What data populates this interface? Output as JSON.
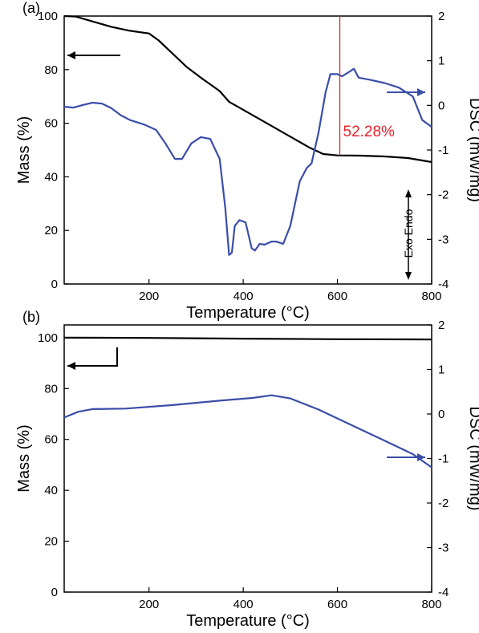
{
  "colors": {
    "mass": "#000000",
    "dsc": "#3a4ea8",
    "annotation": "#e8202a"
  },
  "chart_data": [
    {
      "panel_label": "(a)",
      "type": "line",
      "xlabel": "Temperature (°C)",
      "xlim": [
        20,
        800
      ],
      "xticks": [
        200,
        400,
        600,
        800
      ],
      "ylabel_left": "Mass (%)",
      "ylim_left": [
        0,
        100
      ],
      "yticks_left": [
        0,
        20,
        40,
        60,
        80,
        100
      ],
      "ylabel_right": "DSC (mW/mg)",
      "ylim_right": [
        -4,
        2
      ],
      "yticks_right": [
        -4,
        -3,
        -2,
        -1,
        0,
        1,
        2
      ],
      "reference_line_mass": 100,
      "vertical_marker_x": 605,
      "annotation": "52.28%",
      "exo_endo_label": "Exo  Endo",
      "series": [
        {
          "axis": "left",
          "points": [
            [
              20,
              100
            ],
            [
              45,
              99.8
            ],
            [
              80,
              98
            ],
            [
              120,
              96
            ],
            [
              160,
              94.5
            ],
            [
              200,
              93.5
            ],
            [
              220,
              91
            ],
            [
              250,
              86
            ],
            [
              280,
              81
            ],
            [
              310,
              77
            ],
            [
              350,
              72
            ],
            [
              370,
              68
            ],
            [
              390,
              66
            ],
            [
              420,
              63
            ],
            [
              460,
              59
            ],
            [
              500,
              55
            ],
            [
              540,
              51
            ],
            [
              570,
              48.5
            ],
            [
              600,
              48
            ],
            [
              650,
              47.9
            ],
            [
              700,
              47.6
            ],
            [
              750,
              47
            ],
            [
              800,
              45.5
            ]
          ]
        },
        {
          "axis": "right",
          "points": [
            [
              20,
              -0.03
            ],
            [
              40,
              -0.05
            ],
            [
              60,
              0.01
            ],
            [
              80,
              0.06
            ],
            [
              100,
              0.04
            ],
            [
              120,
              -0.06
            ],
            [
              140,
              -0.22
            ],
            [
              160,
              -0.33
            ],
            [
              190,
              -0.43
            ],
            [
              215,
              -0.55
            ],
            [
              235,
              -0.85
            ],
            [
              255,
              -1.2
            ],
            [
              270,
              -1.2
            ],
            [
              290,
              -0.85
            ],
            [
              310,
              -0.71
            ],
            [
              330,
              -0.75
            ],
            [
              350,
              -1.2
            ],
            [
              362,
              -2.3
            ],
            [
              370,
              -3.35
            ],
            [
              376,
              -3.3
            ],
            [
              382,
              -2.7
            ],
            [
              392,
              -2.57
            ],
            [
              405,
              -2.62
            ],
            [
              418,
              -3.2
            ],
            [
              425,
              -3.25
            ],
            [
              435,
              -3.1
            ],
            [
              445,
              -3.12
            ],
            [
              460,
              -3.05
            ],
            [
              470,
              -3.05
            ],
            [
              485,
              -3.1
            ],
            [
              500,
              -2.7
            ],
            [
              520,
              -1.7
            ],
            [
              535,
              -1.4
            ],
            [
              545,
              -1.3
            ],
            [
              560,
              -0.6
            ],
            [
              575,
              0.3
            ],
            [
              585,
              0.7
            ],
            [
              600,
              0.7
            ],
            [
              610,
              0.65
            ],
            [
              625,
              0.75
            ],
            [
              635,
              0.82
            ],
            [
              645,
              0.62
            ],
            [
              670,
              0.57
            ],
            [
              700,
              0.5
            ],
            [
              730,
              0.4
            ],
            [
              760,
              0.2
            ],
            [
              780,
              -0.33
            ],
            [
              800,
              -0.48
            ]
          ]
        }
      ]
    },
    {
      "panel_label": "(b)",
      "type": "line",
      "xlabel": "Temperature (°C)",
      "xlim": [
        20,
        800
      ],
      "xticks": [
        200,
        400,
        600,
        800
      ],
      "ylabel_left": "Mass (%)",
      "ylim_left": [
        0,
        105
      ],
      "yticks_left": [
        0,
        20,
        40,
        60,
        80,
        100
      ],
      "ylabel_right": "DSC (mW/mg)",
      "ylim_right": [
        -4,
        2
      ],
      "yticks_right": [
        -4,
        -3,
        -2,
        -1,
        0,
        1,
        2
      ],
      "series": [
        {
          "axis": "left",
          "points": [
            [
              20,
              100
            ],
            [
              200,
              99.9
            ],
            [
              400,
              99.6
            ],
            [
              600,
              99.4
            ],
            [
              800,
              99.3
            ]
          ]
        },
        {
          "axis": "right",
          "points": [
            [
              20,
              -0.08
            ],
            [
              50,
              0.05
            ],
            [
              80,
              0.11
            ],
            [
              150,
              0.12
            ],
            [
              250,
              0.2
            ],
            [
              350,
              0.3
            ],
            [
              420,
              0.36
            ],
            [
              460,
              0.42
            ],
            [
              500,
              0.35
            ],
            [
              560,
              0.1
            ],
            [
              620,
              -0.2
            ],
            [
              700,
              -0.6
            ],
            [
              760,
              -0.9
            ],
            [
              800,
              -1.2
            ]
          ]
        }
      ]
    }
  ]
}
